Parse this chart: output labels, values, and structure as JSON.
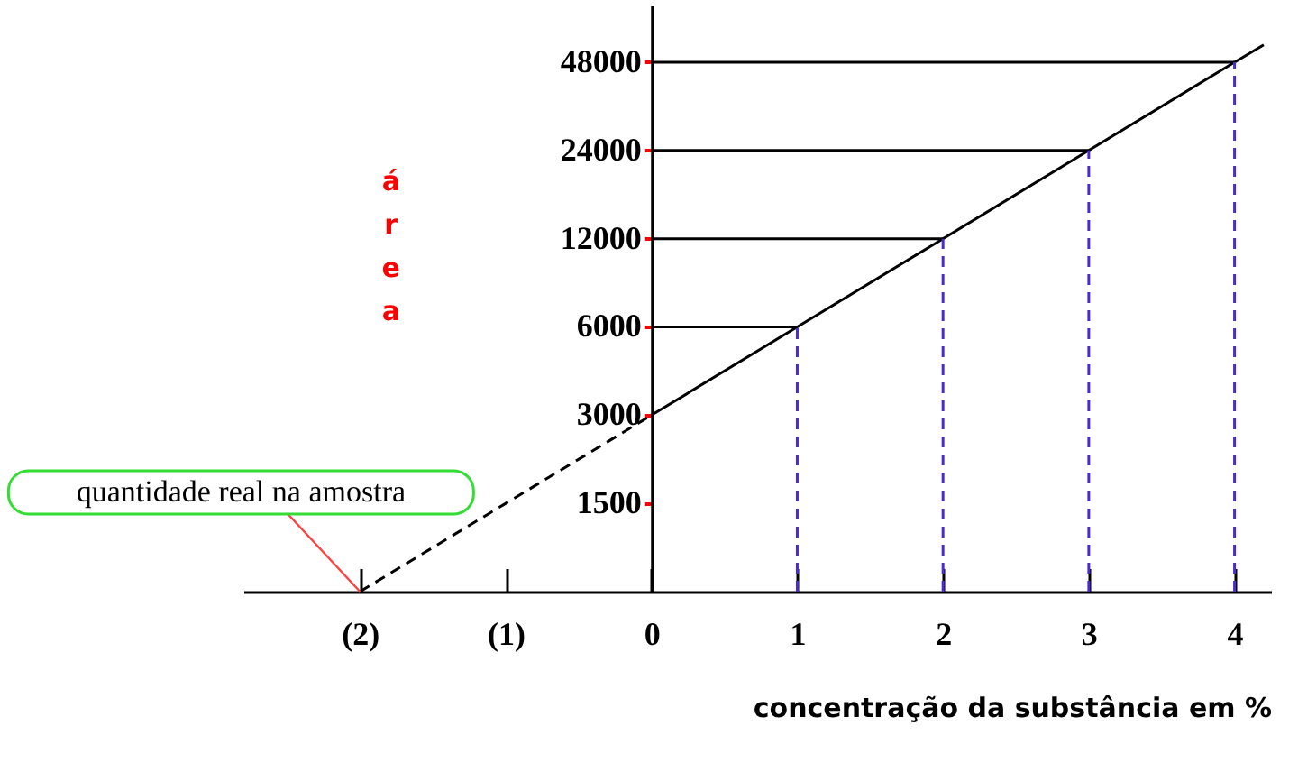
{
  "chart_data": {
    "type": "line",
    "xlabel": "concentração da substância em %",
    "ylabel": "área",
    "log": "y",
    "grid": false,
    "marker": "none",
    "xlim": [
      -2.8,
      4.25
    ],
    "xticks": [
      {
        "value": -2,
        "label": "(2)"
      },
      {
        "value": -1,
        "label": "(1)"
      },
      0,
      1,
      2,
      3,
      4
    ],
    "ylim": [
      750,
      75000
    ],
    "yticks": [
      1500,
      3000,
      6000,
      12000,
      24000,
      48000
    ],
    "series": [
      {
        "color": "#000000",
        "line_style": "solid",
        "x": [
          0,
          1,
          2,
          3,
          4,
          4.2
        ],
        "values": [
          3000,
          6000,
          12000,
          24000,
          48000,
          55000
        ]
      },
      {
        "color": "#000000",
        "line_style": "dashed",
        "x": [
          -2,
          0
        ],
        "values": [
          750,
          3000
        ]
      },
      {
        "color": "#000000",
        "line_style": "solid",
        "x": [
          0,
          1
        ],
        "values": [
          6000,
          6000
        ]
      },
      {
        "color": "#000000",
        "line_style": "solid",
        "x": [
          0,
          2
        ],
        "values": [
          12000,
          12000
        ]
      },
      {
        "color": "#000000",
        "line_style": "solid",
        "x": [
          0,
          3
        ],
        "values": [
          24000,
          24000
        ]
      },
      {
        "color": "#000000",
        "line_style": "solid",
        "x": [
          0,
          4
        ],
        "values": [
          48000,
          48000
        ]
      },
      {
        "color": "#4b2bd0",
        "line_style": "dashed",
        "x": [
          1,
          1
        ],
        "values": [
          750,
          6000
        ]
      },
      {
        "color": "#4b2bd0",
        "line_style": "dashed",
        "x": [
          2,
          2
        ],
        "values": [
          750,
          12000
        ]
      },
      {
        "color": "#4b2bd0",
        "line_style": "dashed",
        "x": [
          3,
          3
        ],
        "values": [
          750,
          24000
        ]
      },
      {
        "color": "#4b2bd0",
        "line_style": "dashed",
        "x": [
          4,
          4
        ],
        "values": [
          750,
          48000
        ]
      }
    ],
    "annotations": [
      {
        "text": "quantidade real na amostra",
        "x": -2,
        "y": 750
      }
    ]
  }
}
